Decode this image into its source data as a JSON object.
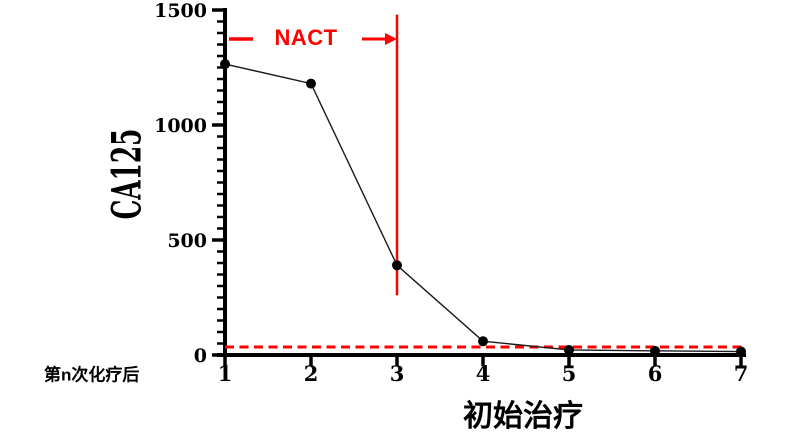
{
  "figure": {
    "background": "#ffffff",
    "axis_color": "#000000"
  },
  "chart_data": {
    "type": "line",
    "title": "",
    "ylabel": "CA125",
    "xlabel": "初始治疗",
    "x_axis_note": "第n次化疗后",
    "x": [
      1,
      2,
      3,
      4,
      5,
      6,
      7
    ],
    "series": [
      {
        "name": "CA125",
        "values": [
          1265,
          1180,
          390,
          60,
          22,
          18,
          15
        ],
        "line_color": "#1a1a1a",
        "marker": "circle",
        "marker_color": "#000000"
      }
    ],
    "xlim": [
      1,
      7
    ],
    "ylim": [
      0,
      1500
    ],
    "x_tick_labels": [
      "1",
      "2",
      "3",
      "4",
      "5",
      "6",
      "7"
    ],
    "y_major_tick_values": [
      0,
      500,
      1000,
      1500
    ],
    "y_major_tick_labels": [
      "0",
      "500",
      "1000",
      "1500"
    ],
    "y_minor_tick_step": 50,
    "grid": false,
    "legend": null,
    "annotations": {
      "nact": {
        "label": "NACT",
        "color": "#ff0000",
        "span_from_x": 1,
        "span_to_x": 3
      },
      "vline": {
        "x": 3,
        "from_y": 260,
        "to_y": 1480,
        "color": "#ff0000",
        "style": "solid"
      },
      "threshold": {
        "y": 35,
        "color": "#ff0000",
        "style": "dashed"
      }
    }
  }
}
